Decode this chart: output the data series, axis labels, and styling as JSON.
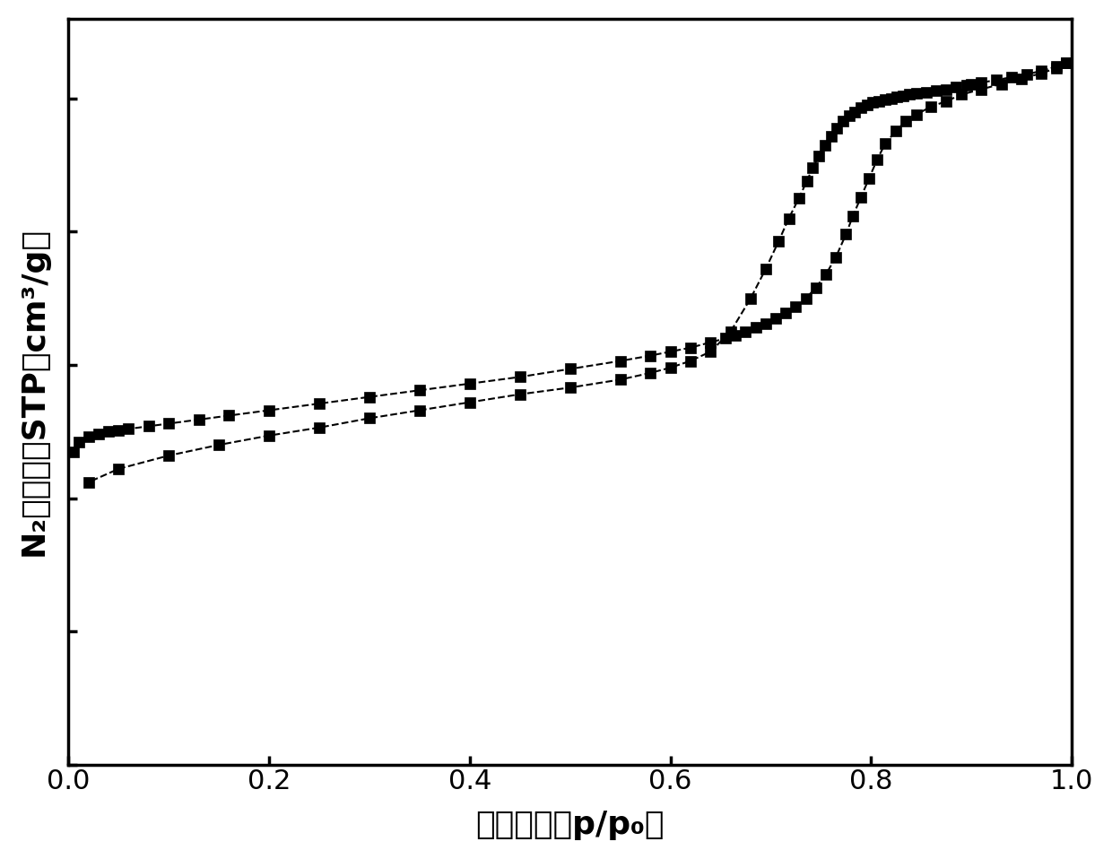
{
  "xlabel": "相对压力（p/p₀）",
  "ylabel": "N₂吸附量（STP，cm³/g）",
  "xlim": [
    0.0,
    1.0
  ],
  "ylim": [
    0,
    560
  ],
  "xticks": [
    0.0,
    0.2,
    0.4,
    0.6,
    0.8,
    1.0
  ],
  "background_color": "#ffffff",
  "line_color": "#000000",
  "marker": "s",
  "markersize": 9,
  "linewidth": 1.5,
  "linestyle": "--",
  "adsorption_x": [
    0.005,
    0.01,
    0.02,
    0.03,
    0.04,
    0.05,
    0.06,
    0.08,
    0.1,
    0.13,
    0.16,
    0.2,
    0.25,
    0.3,
    0.35,
    0.4,
    0.45,
    0.5,
    0.55,
    0.58,
    0.6,
    0.62,
    0.64,
    0.655,
    0.665,
    0.675,
    0.685,
    0.695,
    0.705,
    0.715,
    0.725,
    0.735,
    0.745,
    0.755,
    0.765,
    0.775,
    0.782,
    0.79,
    0.798,
    0.806,
    0.814,
    0.825,
    0.835,
    0.845,
    0.86,
    0.875,
    0.89,
    0.91,
    0.93,
    0.95,
    0.97,
    0.985,
    0.995
  ],
  "adsorption_y": [
    235,
    242,
    246,
    248,
    250,
    251,
    252,
    254,
    256,
    259,
    262,
    266,
    271,
    276,
    281,
    286,
    291,
    297,
    303,
    307,
    310,
    313,
    317,
    320,
    322,
    325,
    328,
    331,
    335,
    339,
    344,
    350,
    358,
    368,
    381,
    398,
    412,
    426,
    440,
    454,
    466,
    476,
    483,
    488,
    494,
    498,
    503,
    507,
    511,
    515,
    519,
    523,
    527
  ],
  "desorption_x": [
    0.995,
    0.985,
    0.97,
    0.955,
    0.94,
    0.925,
    0.91,
    0.9,
    0.895,
    0.885,
    0.875,
    0.865,
    0.855,
    0.845,
    0.838,
    0.832,
    0.826,
    0.82,
    0.814,
    0.808,
    0.802,
    0.796,
    0.79,
    0.784,
    0.778,
    0.772,
    0.766,
    0.76,
    0.754,
    0.748,
    0.742,
    0.736,
    0.728,
    0.718,
    0.708,
    0.695,
    0.68,
    0.66,
    0.64,
    0.62,
    0.6,
    0.58,
    0.55,
    0.5,
    0.45,
    0.4,
    0.35,
    0.3,
    0.25,
    0.2,
    0.15,
    0.1,
    0.05,
    0.02
  ],
  "desorption_y": [
    527,
    524,
    521,
    518,
    516,
    514,
    512,
    511,
    510,
    509,
    507,
    506,
    505,
    504,
    503,
    502,
    501,
    500,
    499,
    498,
    497,
    495,
    493,
    490,
    487,
    483,
    478,
    472,
    465,
    457,
    448,
    438,
    425,
    410,
    393,
    372,
    350,
    325,
    310,
    303,
    298,
    294,
    289,
    283,
    278,
    272,
    266,
    260,
    253,
    247,
    240,
    232,
    222,
    212
  ]
}
